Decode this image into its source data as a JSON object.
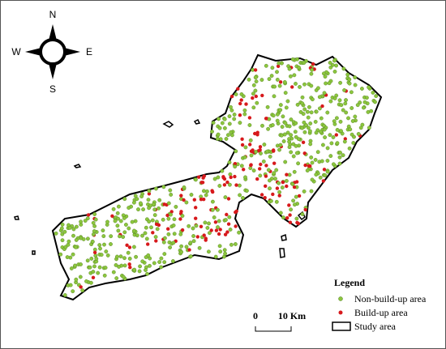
{
  "compass": {
    "north": "N",
    "south": "S",
    "west": "W",
    "east": "E"
  },
  "scale_bar": {
    "start": "0",
    "end": "10 Km"
  },
  "legend": {
    "title": "Legend",
    "items": [
      "Non-build-up area",
      "Build-up area",
      "Study area"
    ]
  }
}
